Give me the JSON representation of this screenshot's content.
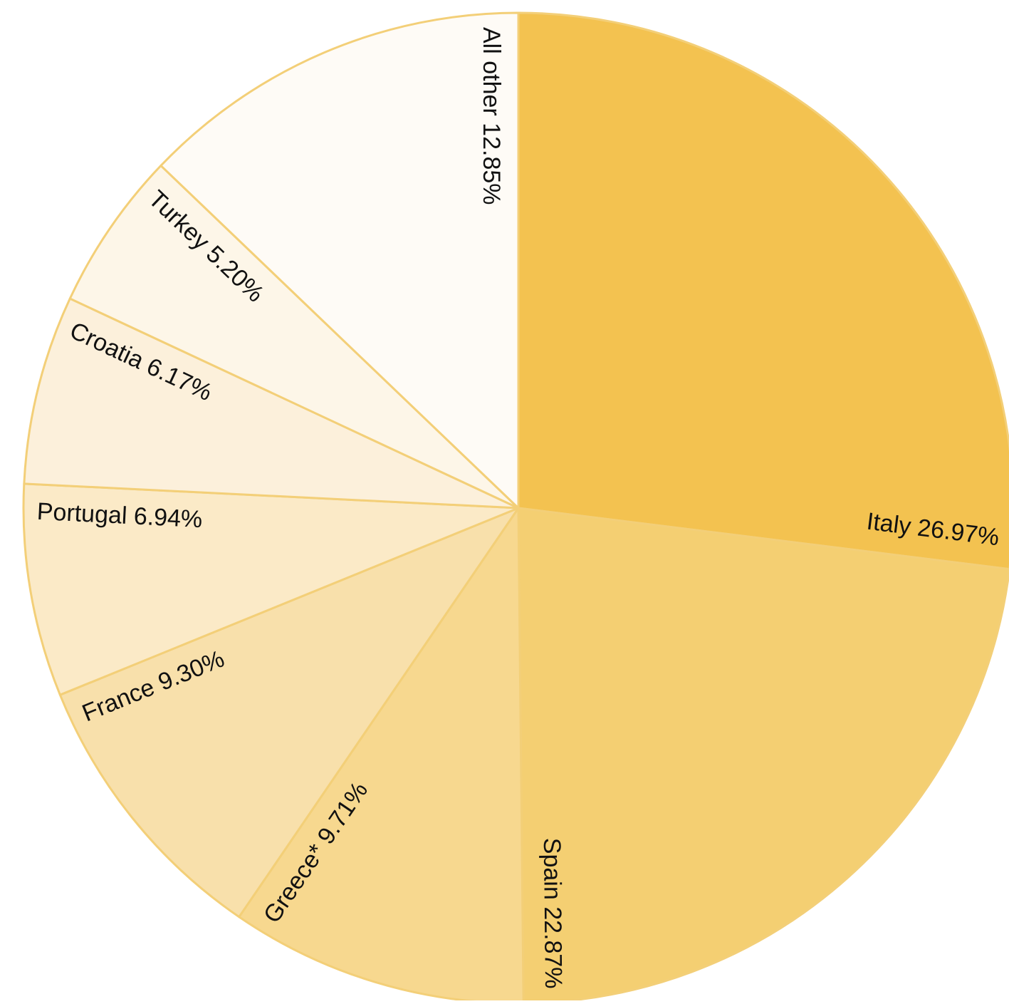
{
  "chart_data": {
    "type": "pie",
    "title": "",
    "slices": [
      {
        "label": "Italy",
        "value": 26.97,
        "display": "Italy 26.97%",
        "color": "#f3c250"
      },
      {
        "label": "Spain",
        "value": 22.87,
        "display": "Spain 22.87%",
        "color": "#f4cf72"
      },
      {
        "label": "Greece*",
        "value": 9.71,
        "display": "Greece* 9.71%",
        "color": "#f7d88f"
      },
      {
        "label": "France",
        "value": 9.3,
        "display": "France 9.30%",
        "color": "#f8e0ab"
      },
      {
        "label": "Portugal",
        "value": 6.94,
        "display": "Portugal 6.94%",
        "color": "#fbeac7"
      },
      {
        "label": "Croatia",
        "value": 6.17,
        "display": "Croatia 6.17%",
        "color": "#fcf0db"
      },
      {
        "label": "Turkey",
        "value": 5.2,
        "display": "Turkey 5.20%",
        "color": "#fdf6e8"
      },
      {
        "label": "All other",
        "value": 12.85,
        "display": "All other 12.85%",
        "color": "#fefbf6"
      }
    ],
    "start_angle": "12 o'clock",
    "direction": "clockwise",
    "slice_border_color": "#f3cf78"
  }
}
